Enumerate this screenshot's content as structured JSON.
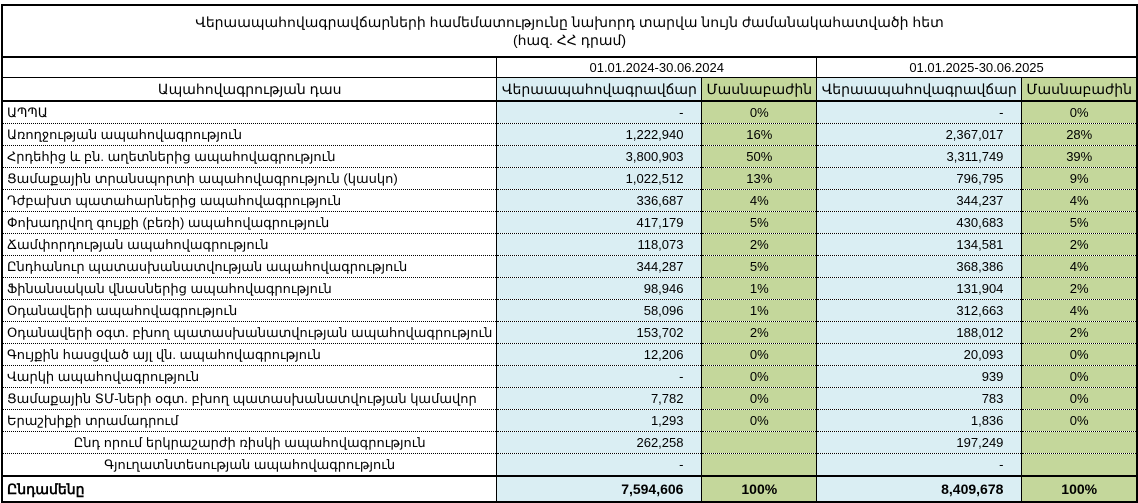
{
  "title": "Վերաապահովագրավճարների համեմատությունը նախորդ տարվա նույն ժամանակահատվածի հետ",
  "subtitle": "(հազ. ՀՀ դրամ)",
  "periods": [
    "01.01.2024-30.06.2024",
    "01.01.2025-30.06.2025"
  ],
  "headers": {
    "class": "Ապահովագրության դաս",
    "premium": "Վերաապահովագրավճար",
    "share": "Մասնաբաժին"
  },
  "colors": {
    "premium_bg": "#daeef3",
    "share_bg": "#c4d79b"
  },
  "rows": [
    {
      "name": "ԱՊՊԱ",
      "p2024": "-",
      "s2024": "0%",
      "p2025": "-",
      "s2025": "0%"
    },
    {
      "name": "Առողջության ապահովագրություն",
      "p2024": "1,222,940",
      "s2024": "16%",
      "p2025": "2,367,017",
      "s2025": "28%"
    },
    {
      "name": "Հրդեհից և բն. աղետներից ապահովագրություն",
      "p2024": "3,800,903",
      "s2024": "50%",
      "p2025": "3,311,749",
      "s2025": "39%"
    },
    {
      "name": "Ցամաքային տրանսպորտի ապահովագրություն (կասկո)",
      "p2024": "1,022,512",
      "s2024": "13%",
      "p2025": "796,795",
      "s2025": "9%"
    },
    {
      "name": "Դժբախտ պատահարներից ապահովագրություն",
      "p2024": "336,687",
      "s2024": "4%",
      "p2025": "344,237",
      "s2025": "4%"
    },
    {
      "name": "Փոխադրվող գույքի (բեռի) ապահովագրություն",
      "p2024": "417,179",
      "s2024": "5%",
      "p2025": "430,683",
      "s2025": "5%"
    },
    {
      "name": "Ճամփորդության ապահովագրություն",
      "p2024": "118,073",
      "s2024": "2%",
      "p2025": "134,581",
      "s2025": "2%"
    },
    {
      "name": "Ընդհանուր պատասխանատվության ապահովագրություն",
      "p2024": "344,287",
      "s2024": "5%",
      "p2025": "368,386",
      "s2025": "4%"
    },
    {
      "name": "Ֆինանսական վնասներից ապահովագրություն",
      "p2024": "98,946",
      "s2024": "1%",
      "p2025": "131,904",
      "s2025": "2%"
    },
    {
      "name": "Օդանավերի ապահովագրություն",
      "p2024": "58,096",
      "s2024": "1%",
      "p2025": "312,663",
      "s2025": "4%"
    },
    {
      "name": "Օդանավերի օգտ. բխող պատասխանատվության ապահովագրություն",
      "p2024": "153,702",
      "s2024": "2%",
      "p2025": "188,012",
      "s2025": "2%"
    },
    {
      "name": "Գույքին հասցված այլ վն. ապահովագրություն",
      "p2024": "12,206",
      "s2024": "0%",
      "p2025": "20,093",
      "s2025": "0%"
    },
    {
      "name": "Վարկի ապահովագրություն",
      "p2024": "-",
      "s2024": "0%",
      "p2025": "939",
      "s2025": "0%"
    },
    {
      "name": "Ցամաքային ՏՄ-ների օգտ. բխող պատասխանատվության կամավոր",
      "p2024": "7,782",
      "s2024": "0%",
      "p2025": "783",
      "s2025": "0%"
    },
    {
      "name": "Երաշխիքի տրամադրում",
      "p2024": "1,293",
      "s2024": "0%",
      "p2025": "1,836",
      "s2025": "0%"
    },
    {
      "name": "Ընդ որում  երկրաշարժի ռիսկի ապահովագրություն",
      "p2024": "262,258",
      "s2024": "",
      "p2025": "197,249",
      "s2025": "",
      "centered": true
    },
    {
      "name": "Գյուղատնտեսության ապահովագրություն",
      "p2024": "-",
      "s2024": "",
      "p2025": "-",
      "s2025": "",
      "centered": true
    }
  ],
  "total": {
    "name": "Ընդամենը",
    "p2024": "7,594,606",
    "s2024": "100%",
    "p2025": "8,409,678",
    "s2025": "100%"
  }
}
